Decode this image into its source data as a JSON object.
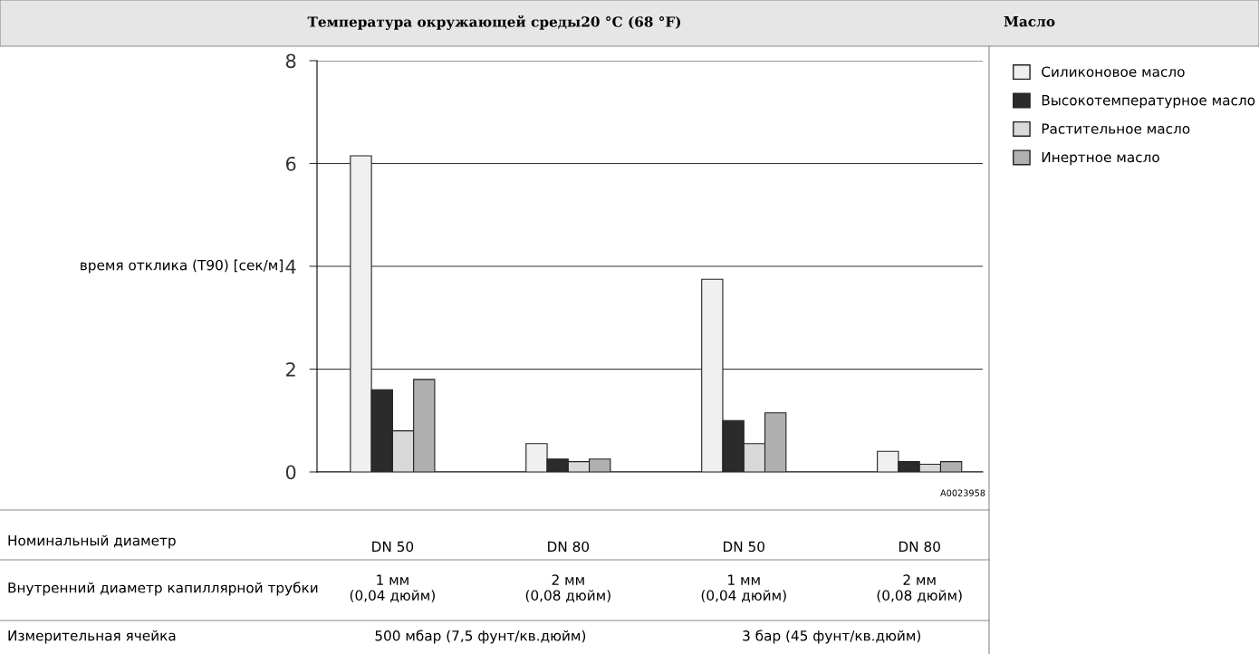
{
  "chart_data": {
    "type": "bar",
    "title": "Температура окружающей среды20 °C (68 °F)",
    "ylabel": "время отклика (T90) [сек/м]",
    "legend_title": "Масло",
    "categories": [
      "DN 50",
      "DN 80",
      "DN 50",
      "DN 80"
    ],
    "series": [
      {
        "name": "Силиконовое масло",
        "color": "#f0f0f0",
        "values": [
          6.15,
          0.55,
          3.75,
          0.4
        ]
      },
      {
        "name": "Высокотемпературное масло",
        "color": "#2b2b2b",
        "values": [
          1.6,
          0.25,
          1.0,
          0.2
        ]
      },
      {
        "name": "Растительное масло",
        "color": "#d9d9d9",
        "values": [
          0.8,
          0.2,
          0.55,
          0.15
        ]
      },
      {
        "name": "Инертное масло",
        "color": "#b0b0b0",
        "values": [
          1.8,
          0.25,
          1.15,
          0.2
        ]
      }
    ],
    "ylim": [
      0,
      8
    ],
    "yticks": [
      0,
      2,
      4,
      6,
      8
    ],
    "grid": "y",
    "legend": "right",
    "annotations": [
      "A0023958",
      "Номинальный диаметр",
      "Внутренний диаметр капиллярной трубки",
      "1 мм\n(0,04 дюйм)",
      "2 мм\n(0,08 дюйм)",
      "1 мм\n(0,04 дюйм)",
      "2 мм\n(0,08 дюйм)",
      "Измерительная ячейка",
      "500 мбар (7,5 фунт/кв.дюйм)",
      "3 бар (45 фунт/кв.дюйм)"
    ]
  }
}
